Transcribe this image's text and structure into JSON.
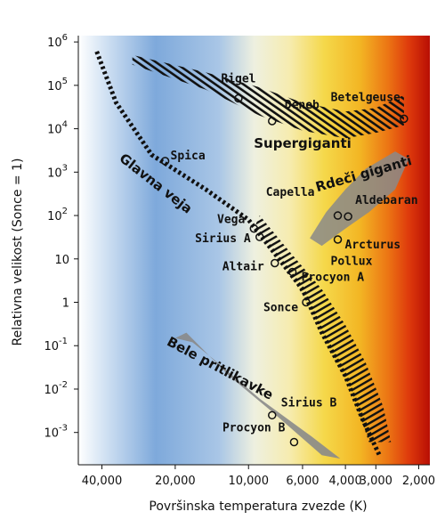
{
  "chart_data": {
    "type": "scatter",
    "title": "",
    "xlabel": "Površinska temperatura zvezde (K)",
    "ylabel": "Relativna velikost (Sonce = 1)",
    "x_scale": "log",
    "x_reversed": true,
    "y_scale": "log",
    "xlim": [
      50000,
      1800
    ],
    "ylim": [
      0.00018,
      1400000
    ],
    "x_ticks": [
      {
        "value": 40000,
        "label": "40,000"
      },
      {
        "value": 20000,
        "label": "20,000"
      },
      {
        "value": 10000,
        "label": "10,000"
      },
      {
        "value": 6000,
        "label": "6,000"
      },
      {
        "value": 4000,
        "label": "4,000"
      },
      {
        "value": 3000,
        "label": "3,000"
      },
      {
        "value": 2000,
        "label": "2,000"
      }
    ],
    "y_ticks": [
      {
        "value": 1000000,
        "base": "10",
        "exp": "6"
      },
      {
        "value": 100000,
        "base": "10",
        "exp": "5"
      },
      {
        "value": 10000,
        "base": "10",
        "exp": "4"
      },
      {
        "value": 1000,
        "base": "10",
        "exp": "3"
      },
      {
        "value": 100,
        "base": "10",
        "exp": "2"
      },
      {
        "value": 10,
        "base": "10",
        "exp": ""
      },
      {
        "value": 1,
        "base": "1",
        "exp": ""
      },
      {
        "value": 0.1,
        "base": "10",
        "exp": "-1"
      },
      {
        "value": 0.01,
        "base": "10",
        "exp": "-2"
      },
      {
        "value": 0.001,
        "base": "10",
        "exp": "-3"
      }
    ],
    "stars": [
      {
        "name": "Rigel",
        "x": 11000,
        "y": 50000,
        "marker": "circle"
      },
      {
        "name": "Deneb",
        "x": 8000,
        "y": 15000,
        "marker": "circle"
      },
      {
        "name": "Betelgeuse",
        "x": 2300,
        "y": 17000,
        "marker": "circle"
      },
      {
        "name": "Spica",
        "x": 22000,
        "y": 1800,
        "marker": "circle"
      },
      {
        "name": "Capella",
        "x": 4300,
        "y": 100,
        "marker": "circle"
      },
      {
        "name": "Aldebaran",
        "x": 3900,
        "y": 95,
        "marker": "circle"
      },
      {
        "name": "Vega",
        "x": 9500,
        "y": 50,
        "marker": "circle"
      },
      {
        "name": "Arcturus",
        "x": 4300,
        "y": 28,
        "marker": "circle"
      },
      {
        "name": "Sirius A",
        "x": 9000,
        "y": 32,
        "marker": "circle"
      },
      {
        "name": "Pollux",
        "x": 4600,
        "y": 14,
        "marker": "none"
      },
      {
        "name": "Altair",
        "x": 7800,
        "y": 8,
        "marker": "circle"
      },
      {
        "name": "Procyon A",
        "x": 6600,
        "y": 5,
        "marker": "circle"
      },
      {
        "name": "Sonce",
        "x": 5800,
        "y": 1,
        "marker": "circle"
      },
      {
        "name": "Sirius B",
        "x": 8000,
        "y": 0.0025,
        "marker": "circle"
      },
      {
        "name": "Procyon B",
        "x": 6500,
        "y": 0.0006,
        "marker": "circle"
      }
    ],
    "regions": [
      {
        "name": "Supergiganti",
        "kind": "hatched-band"
      },
      {
        "name": "Glavna veja",
        "kind": "dashed-band"
      },
      {
        "name": "Rdeči giganti",
        "kind": "gray-band"
      },
      {
        "name": "Bele pritlikavke",
        "kind": "gray-band"
      }
    ],
    "grid": false,
    "legend": "none",
    "colors": {
      "hot": "#6ea0d8",
      "mid": "#f5f5dc",
      "warm": "#f5d23c",
      "cool": "#d81808",
      "band_gray": "#8a8a8a",
      "ink": "#111111"
    }
  }
}
